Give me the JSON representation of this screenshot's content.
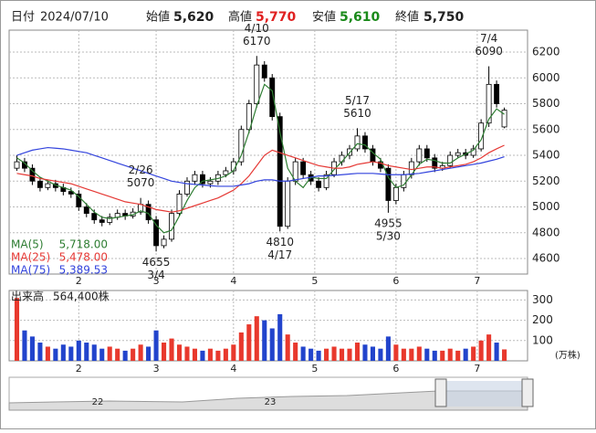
{
  "header": {
    "date_label": "日付",
    "date": "2024/07/10",
    "open_label": "始値",
    "open": "5,620",
    "high_label": "高値",
    "high": "5,770",
    "low_label": "安値",
    "low": "5,610",
    "close_label": "終値",
    "close": "5,750"
  },
  "chart_data": {
    "type": "candlestick",
    "x": [
      0,
      2,
      4,
      6,
      8,
      10,
      12,
      14,
      16,
      18,
      20,
      22,
      24,
      26,
      28,
      30,
      32,
      34,
      36,
      38,
      40,
      42,
      44,
      46,
      48,
      50,
      52,
      54,
      56,
      58,
      60,
      62,
      64,
      66,
      68,
      70,
      72,
      74,
      76,
      78,
      80,
      82,
      84,
      86,
      88,
      90,
      92,
      94,
      96,
      98,
      100,
      102,
      104,
      106,
      108,
      110,
      112,
      114,
      116,
      118,
      120,
      122,
      124,
      126
    ],
    "ohlc": [
      [
        5300,
        5400,
        5280,
        5350
      ],
      [
        5350,
        5380,
        5270,
        5300
      ],
      [
        5300,
        5330,
        5170,
        5200
      ],
      [
        5200,
        5230,
        5120,
        5150
      ],
      [
        5150,
        5210,
        5130,
        5180
      ],
      [
        5180,
        5210,
        5120,
        5150
      ],
      [
        5150,
        5180,
        5090,
        5120
      ],
      [
        5120,
        5150,
        5070,
        5100
      ],
      [
        5100,
        5130,
        4970,
        5000
      ],
      [
        5000,
        5030,
        4920,
        4950
      ],
      [
        4950,
        4980,
        4870,
        4900
      ],
      [
        4900,
        4930,
        4850,
        4880
      ],
      [
        4880,
        4950,
        4860,
        4920
      ],
      [
        4920,
        4980,
        4900,
        4950
      ],
      [
        4950,
        4980,
        4900,
        4930
      ],
      [
        4930,
        4990,
        4910,
        4960
      ],
      [
        4960,
        5070,
        4940,
        5020
      ],
      [
        5020,
        5050,
        4870,
        4900
      ],
      [
        4900,
        4930,
        4655,
        4700
      ],
      [
        4700,
        4780,
        4680,
        4750
      ],
      [
        4750,
        4980,
        4730,
        4950
      ],
      [
        4950,
        5130,
        4930,
        5100
      ],
      [
        5100,
        5230,
        5080,
        5200
      ],
      [
        5200,
        5280,
        5170,
        5250
      ],
      [
        5250,
        5280,
        5150,
        5180
      ],
      [
        5180,
        5230,
        5150,
        5200
      ],
      [
        5200,
        5280,
        5170,
        5250
      ],
      [
        5250,
        5310,
        5230,
        5280
      ],
      [
        5280,
        5380,
        5250,
        5350
      ],
      [
        5350,
        5630,
        5320,
        5600
      ],
      [
        5600,
        5830,
        5570,
        5800
      ],
      [
        5800,
        6170,
        5770,
        6100
      ],
      [
        6100,
        6130,
        5970,
        6000
      ],
      [
        6000,
        6030,
        5670,
        5700
      ],
      [
        5700,
        5730,
        4810,
        4850
      ],
      [
        4850,
        5230,
        4830,
        5200
      ],
      [
        5200,
        5380,
        5170,
        5350
      ],
      [
        5350,
        5380,
        5220,
        5250
      ],
      [
        5250,
        5280,
        5170,
        5200
      ],
      [
        5200,
        5230,
        5120,
        5150
      ],
      [
        5150,
        5280,
        5130,
        5250
      ],
      [
        5250,
        5380,
        5230,
        5350
      ],
      [
        5350,
        5430,
        5320,
        5400
      ],
      [
        5400,
        5480,
        5370,
        5450
      ],
      [
        5450,
        5610,
        5430,
        5550
      ],
      [
        5550,
        5580,
        5420,
        5450
      ],
      [
        5450,
        5480,
        5320,
        5350
      ],
      [
        5350,
        5380,
        5270,
        5300
      ],
      [
        5300,
        5330,
        4955,
        5050
      ],
      [
        5050,
        5180,
        5020,
        5150
      ],
      [
        5150,
        5280,
        5120,
        5250
      ],
      [
        5250,
        5380,
        5220,
        5350
      ],
      [
        5350,
        5480,
        5320,
        5450
      ],
      [
        5450,
        5480,
        5350,
        5380
      ],
      [
        5380,
        5410,
        5270,
        5300
      ],
      [
        5300,
        5350,
        5280,
        5320
      ],
      [
        5320,
        5430,
        5300,
        5400
      ],
      [
        5400,
        5450,
        5380,
        5420
      ],
      [
        5420,
        5450,
        5370,
        5400
      ],
      [
        5400,
        5480,
        5380,
        5450
      ],
      [
        5450,
        5680,
        5430,
        5650
      ],
      [
        5650,
        6090,
        5620,
        5950
      ],
      [
        5950,
        5980,
        5770,
        5800
      ],
      [
        5620,
        5770,
        5610,
        5750
      ]
    ],
    "up_color": "#e8392d",
    "down_color": "#2244cc",
    "series": [
      {
        "name": "MA(5)",
        "latest_label": "5,718.00",
        "color": "#2e7d32",
        "values": [
          5380,
          5340,
          5280,
          5230,
          5200,
          5170,
          5150,
          5130,
          5080,
          5020,
          4960,
          4920,
          4910,
          4920,
          4930,
          4940,
          4970,
          4950,
          4860,
          4800,
          4820,
          4930,
          5050,
          5150,
          5200,
          5210,
          5220,
          5240,
          5280,
          5400,
          5580,
          5780,
          5950,
          5900,
          5580,
          5300,
          5200,
          5150,
          5230,
          5220,
          5220,
          5290,
          5350,
          5420,
          5490,
          5480,
          5420,
          5370,
          5230,
          5150,
          5170,
          5250,
          5330,
          5370,
          5360,
          5340,
          5340,
          5380,
          5410,
          5440,
          5520,
          5680,
          5760,
          5718
        ]
      },
      {
        "name": "MA(25)",
        "latest_label": "5,478.00",
        "color": "#e53935",
        "values": [
          5260,
          5250,
          5240,
          5220,
          5210,
          5200,
          5190,
          5180,
          5160,
          5140,
          5120,
          5100,
          5080,
          5060,
          5040,
          5030,
          5020,
          5000,
          4980,
          4970,
          4960,
          4970,
          4990,
          5010,
          5030,
          5050,
          5070,
          5100,
          5130,
          5180,
          5240,
          5320,
          5400,
          5440,
          5420,
          5400,
          5380,
          5360,
          5340,
          5320,
          5310,
          5300,
          5300,
          5310,
          5330,
          5340,
          5350,
          5340,
          5320,
          5310,
          5300,
          5290,
          5300,
          5310,
          5310,
          5300,
          5310,
          5320,
          5330,
          5350,
          5380,
          5420,
          5450,
          5478
        ]
      },
      {
        "name": "MA(75)",
        "latest_label": "5,389.53",
        "color": "#3344dd",
        "values": [
          5400,
          5420,
          5440,
          5450,
          5460,
          5455,
          5450,
          5440,
          5430,
          5420,
          5400,
          5380,
          5360,
          5340,
          5320,
          5300,
          5280,
          5260,
          5240,
          5220,
          5200,
          5190,
          5180,
          5175,
          5170,
          5165,
          5160,
          5160,
          5160,
          5170,
          5180,
          5200,
          5210,
          5210,
          5200,
          5200,
          5210,
          5220,
          5230,
          5240,
          5240,
          5245,
          5250,
          5255,
          5260,
          5260,
          5260,
          5255,
          5250,
          5250,
          5250,
          5255,
          5260,
          5270,
          5280,
          5290,
          5300,
          5310,
          5320,
          5330,
          5340,
          5355,
          5370,
          5389.53
        ]
      }
    ],
    "xlim": [
      -2,
      132
    ],
    "xticks": [
      {
        "value": 16,
        "label": "2"
      },
      {
        "value": 36,
        "label": "3"
      },
      {
        "value": 56,
        "label": "4"
      },
      {
        "value": 77,
        "label": "5"
      },
      {
        "value": 98,
        "label": "6"
      },
      {
        "value": 119,
        "label": "7"
      }
    ],
    "ylim": [
      4480,
      6370
    ],
    "yticks": [
      4600,
      4800,
      5000,
      5200,
      5400,
      5600,
      5800,
      6000,
      6200
    ],
    "grid": true,
    "annotations": [
      {
        "date": "2/26",
        "price": 5070,
        "x": 32,
        "pos": "above"
      },
      {
        "date": "3/4",
        "price": 4655,
        "x": 36,
        "pos": "below"
      },
      {
        "date": "4/10",
        "price": 6170,
        "x": 62,
        "pos": "above"
      },
      {
        "date": "4/17",
        "price": 4810,
        "x": 68,
        "pos": "below"
      },
      {
        "date": "5/17",
        "price": 5610,
        "x": 88,
        "pos": "above"
      },
      {
        "date": "5/30",
        "price": 4955,
        "x": 96,
        "pos": "below"
      },
      {
        "date": "7/4",
        "price": 6090,
        "x": 122,
        "pos": "above"
      }
    ],
    "volume": {
      "title": "出来高",
      "latest_label": "564,400株",
      "unit": "(万株)",
      "values": [
        310,
        150,
        120,
        90,
        70,
        60,
        80,
        70,
        100,
        90,
        80,
        60,
        70,
        60,
        50,
        60,
        80,
        70,
        150,
        90,
        110,
        80,
        70,
        60,
        50,
        60,
        50,
        60,
        80,
        140,
        180,
        220,
        200,
        160,
        230,
        130,
        90,
        70,
        60,
        50,
        60,
        70,
        60,
        60,
        90,
        80,
        70,
        60,
        120,
        80,
        60,
        60,
        70,
        60,
        50,
        50,
        60,
        50,
        60,
        70,
        100,
        130,
        90,
        56.44
      ],
      "ylim": [
        0,
        347
      ],
      "yticks": [
        100,
        200,
        300
      ]
    }
  },
  "navigator": {
    "labels": [
      "22",
      "23"
    ]
  }
}
